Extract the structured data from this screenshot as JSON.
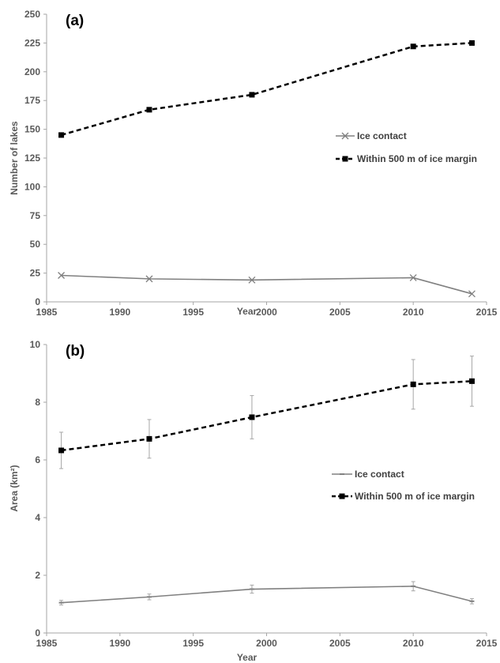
{
  "colors": {
    "ice_contact": "#808080",
    "within_500m": "#000000",
    "axis": "#a6a6a6",
    "text": "#595959"
  },
  "chart_data": [
    {
      "type": "line",
      "panel_label": "(a)",
      "xlabel": "Year",
      "ylabel": "Number of lakes",
      "xlim": [
        1985,
        2015
      ],
      "ylim": [
        0,
        250
      ],
      "xticks": [
        1985,
        1990,
        1995,
        2000,
        2005,
        2010,
        2015
      ],
      "yticks": [
        0,
        25,
        50,
        75,
        100,
        125,
        150,
        175,
        200,
        225,
        250
      ],
      "grid": false,
      "legend": "right",
      "series": [
        {
          "name": "Ice contact",
          "marker": "x",
          "style": "solid",
          "color": "#808080",
          "x": [
            1986,
            1992,
            1999,
            2010,
            2014
          ],
          "y": [
            23,
            20,
            19,
            21,
            7
          ]
        },
        {
          "name": "Within 500 m of ice margin",
          "marker": "square",
          "style": "dashed",
          "color": "#000000",
          "x": [
            1986,
            1992,
            1999,
            2010,
            2014
          ],
          "y": [
            145,
            167,
            180,
            222,
            225
          ]
        }
      ]
    },
    {
      "type": "line",
      "panel_label": "(b)",
      "xlabel": "Year",
      "ylabel": "Area (km²)",
      "xlim": [
        1985,
        2015
      ],
      "ylim": [
        0,
        10
      ],
      "xticks": [
        1985,
        1990,
        1995,
        2000,
        2005,
        2010,
        2015
      ],
      "yticks": [
        0,
        2,
        4,
        6,
        8,
        10
      ],
      "grid": false,
      "legend": "right",
      "series": [
        {
          "name": "Ice contact",
          "marker": "dash",
          "style": "solid",
          "color": "#808080",
          "x": [
            1986,
            1992,
            1999,
            2010,
            2014
          ],
          "y": [
            1.05,
            1.25,
            1.52,
            1.62,
            1.1
          ],
          "error": [
            0.08,
            0.1,
            0.14,
            0.16,
            0.09
          ]
        },
        {
          "name": "Within 500 m of ice margin",
          "marker": "square",
          "style": "dashed",
          "color": "#000000",
          "x": [
            1986,
            1992,
            1999,
            2010,
            2014
          ],
          "y": [
            6.33,
            6.73,
            7.48,
            8.62,
            8.73
          ],
          "error": [
            0.63,
            0.67,
            0.75,
            0.86,
            0.87
          ]
        }
      ]
    }
  ]
}
